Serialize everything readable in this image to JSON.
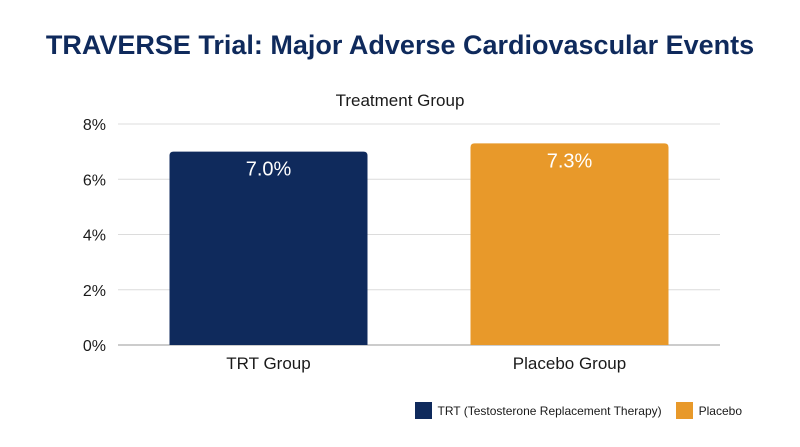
{
  "chart_data": {
    "type": "bar",
    "title": "TRAVERSE Trial: Major Adverse Cardiovascular Events",
    "subtitle": "Treatment Group",
    "categories": [
      "TRT Group",
      "Placebo Group"
    ],
    "values": [
      7.0,
      7.3
    ],
    "data_labels": [
      "7.0%",
      "7.3%"
    ],
    "colors": [
      "#0f2a5c",
      "#e8992a"
    ],
    "ylim": [
      0,
      8
    ],
    "yticks": [
      0,
      2,
      4,
      6,
      8
    ],
    "ytick_labels": [
      "0%",
      "2%",
      "4%",
      "6%",
      "8%"
    ],
    "grid": true,
    "legend_position": "bottom-right",
    "legend": [
      {
        "label": "TRT (Testosterone Replacement Therapy)",
        "color": "#0f2a5c"
      },
      {
        "label": "Placebo",
        "color": "#e8992a"
      }
    ]
  }
}
